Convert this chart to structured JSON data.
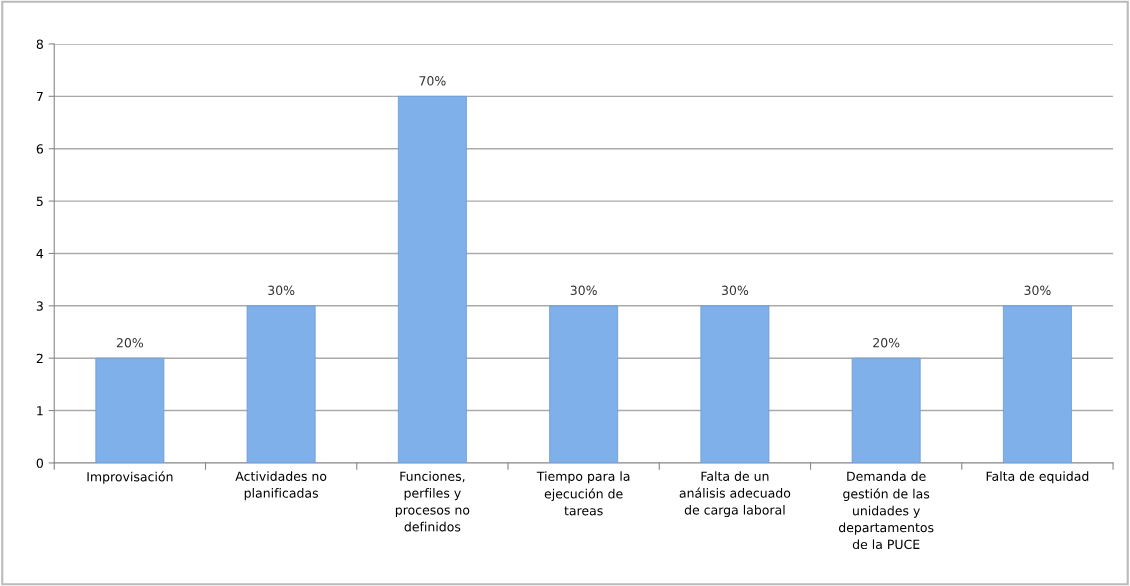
{
  "chart_data": {
    "type": "bar",
    "categories": [
      "Improvisación",
      "Actividades no\nplanificadas",
      "Funciones,\nperfiles y\nprocesos no\ndefinidos",
      "Tiempo para la\nejecución de\ntareas",
      "Falta de un\nanálisis adecuado\nde carga laboral",
      "Demanda de\ngestión de las\nunidades y\ndepartamentos\nde la PUCE",
      "Falta de equidad"
    ],
    "values": [
      2,
      3,
      7,
      3,
      3,
      2,
      3
    ],
    "annotations": [
      {
        "text": "20%",
        "x": "Improvisación",
        "y": 2
      },
      {
        "text": "30%",
        "x": "Actividades no\nplanificadas",
        "y": 3
      },
      {
        "text": "70%",
        "x": "Funciones,\nperfiles y\nprocesos no\ndefinidos",
        "y": 7
      },
      {
        "text": "30%",
        "x": "Tiempo para la\nejecución de\ntareas",
        "y": 3
      },
      {
        "text": "30%",
        "x": "Falta de un\nanálisis adecuado\nde carga laboral",
        "y": 3
      },
      {
        "text": "20%",
        "x": "Demanda de\ngestión de las\nunidades y\ndepartamentos\nde la PUCE",
        "y": 2
      },
      {
        "text": "30%",
        "x": "Falta de equidad",
        "y": 3
      }
    ],
    "color": "#7fb0ea",
    "ylim": [
      0,
      8
    ],
    "yticks": [
      0,
      1,
      2,
      3,
      4,
      5,
      6,
      7,
      8
    ],
    "grid": "y",
    "legend": false
  }
}
